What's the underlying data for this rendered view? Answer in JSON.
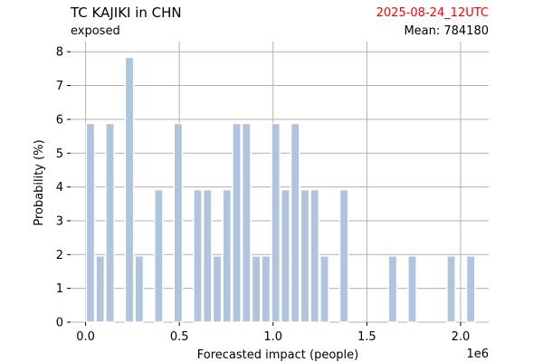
{
  "header": {
    "title": "TC KAJIKI in CHN",
    "date": "2025-08-24_12UTC",
    "subtitle": "exposed",
    "mean": "Mean: 784180"
  },
  "colors": {
    "bar": "#b0c4de",
    "grid": "#b0b0b0",
    "date": "#ff0000"
  },
  "chart_data": {
    "type": "bar",
    "xlabel": "Forecasted impact (people)",
    "ylabel": "Probability (%)",
    "x_multiplier": "1e6",
    "xlim": [
      -0.08,
      2.15
    ],
    "ylim": [
      0,
      8.3
    ],
    "xticks": [
      0.0,
      0.5,
      1.0,
      1.5,
      2.0
    ],
    "xtick_labels": [
      "0.0",
      "0.5",
      "1.0",
      "1.5",
      "2.0"
    ],
    "yticks": [
      0,
      1,
      2,
      3,
      4,
      5,
      6,
      7,
      8
    ],
    "ytick_labels": [
      "0",
      "1",
      "2",
      "3",
      "4",
      "5",
      "6",
      "7",
      "8"
    ],
    "grid": true,
    "bin_width": 0.052,
    "bin_starts": [
      0.0,
      0.052,
      0.104,
      0.208,
      0.26,
      0.364,
      0.468,
      0.572,
      0.624,
      0.676,
      0.728,
      0.78,
      0.832,
      0.884,
      0.936,
      0.988,
      1.04,
      1.092,
      1.144,
      1.196,
      1.248,
      1.352,
      1.612,
      1.716,
      1.924,
      2.028
    ],
    "values": [
      5.88,
      1.96,
      5.88,
      7.84,
      1.96,
      3.92,
      5.88,
      3.92,
      3.92,
      1.96,
      3.92,
      5.88,
      5.88,
      1.96,
      1.96,
      5.88,
      3.92,
      5.88,
      3.92,
      3.92,
      1.96,
      3.92,
      1.96,
      1.96,
      1.96,
      1.96
    ]
  }
}
